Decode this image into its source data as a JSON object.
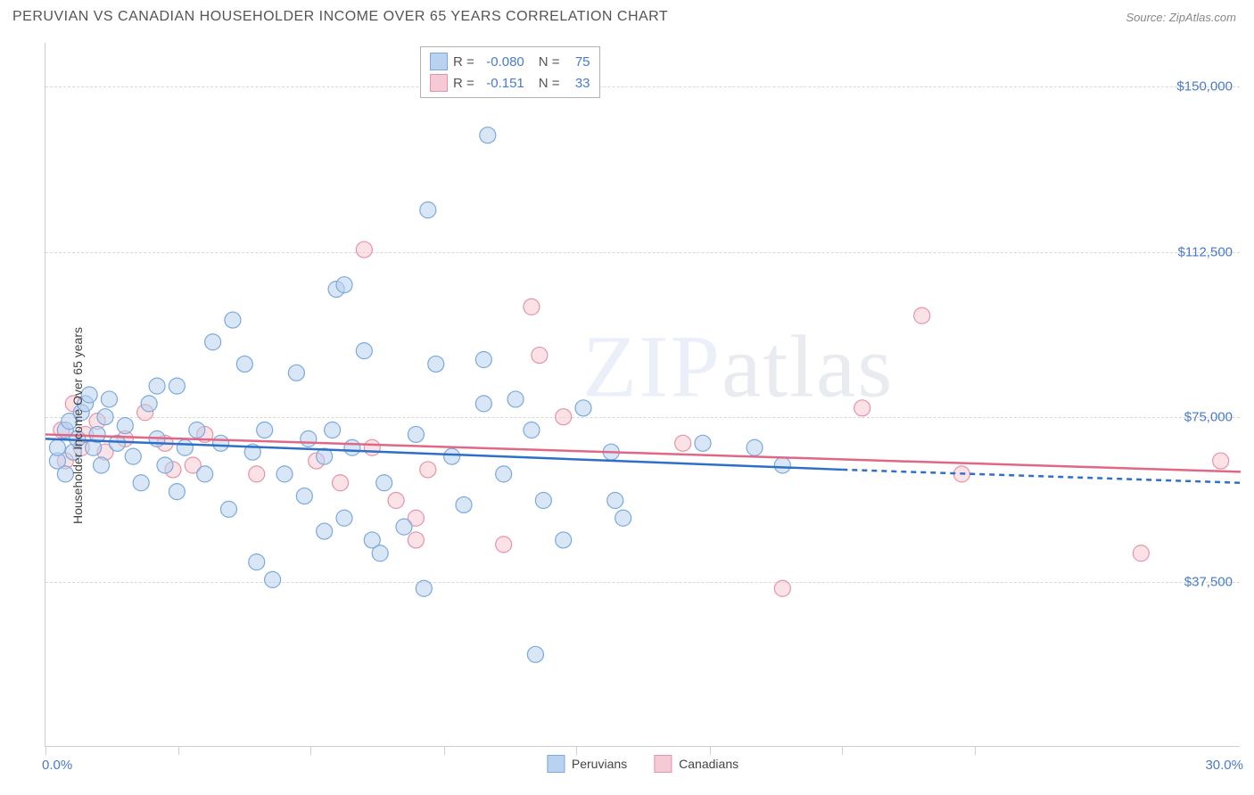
{
  "header": {
    "title": "PERUVIAN VS CANADIAN HOUSEHOLDER INCOME OVER 65 YEARS CORRELATION CHART",
    "source_prefix": "Source: ",
    "source": "ZipAtlas.com"
  },
  "chart": {
    "type": "scatter",
    "xlim": [
      0,
      30
    ],
    "ylim": [
      0,
      160000
    ],
    "x_axis_label_left": "0.0%",
    "x_axis_label_right": "30.0%",
    "y_axis_title": "Householder Income Over 65 years",
    "y_ticks": [
      {
        "value": 37500,
        "label": "$37,500"
      },
      {
        "value": 75000,
        "label": "$75,000"
      },
      {
        "value": 112500,
        "label": "$112,500"
      },
      {
        "value": 150000,
        "label": "$150,000"
      }
    ],
    "x_ticks": [
      0,
      3.33,
      6.66,
      10,
      13.33,
      16.67,
      20,
      23.33
    ],
    "colors": {
      "series1_fill": "#b8d2ef",
      "series1_stroke": "#7ba9dd",
      "series1_line": "#2e6fc9",
      "series2_fill": "#f5cad4",
      "series2_stroke": "#e593a8",
      "series2_line": "#e06886",
      "grid": "#d8d8d8",
      "axis_text": "#4a7ac9",
      "watermark": "#cdd3e0"
    },
    "marker_radius": 9,
    "marker_opacity": 0.55,
    "line_width": 2.5,
    "stats": [
      {
        "swatch_fill": "#b8d2ef",
        "swatch_stroke": "#7ba9dd",
        "r": "-0.080",
        "n": "75"
      },
      {
        "swatch_fill": "#f5cad4",
        "swatch_stroke": "#e593a8",
        "r": "-0.151",
        "n": "33"
      }
    ],
    "legend": [
      {
        "label": "Peruvians",
        "fill": "#b8d2ef",
        "stroke": "#7ba9dd"
      },
      {
        "label": "Canadians",
        "fill": "#f5cad4",
        "stroke": "#e593a8"
      }
    ],
    "trend_lines": {
      "series1": {
        "x1": 0,
        "y1": 70000,
        "x2": 20,
        "y2": 63000,
        "dash_x2": 30,
        "dash_y2": 60000
      },
      "series2": {
        "x1": 0,
        "y1": 71000,
        "x2": 30,
        "y2": 62500
      }
    },
    "data_series1": [
      {
        "x": 0.3,
        "y": 65000
      },
      {
        "x": 0.3,
        "y": 68000
      },
      {
        "x": 0.5,
        "y": 72000
      },
      {
        "x": 0.5,
        "y": 62000
      },
      {
        "x": 0.6,
        "y": 74000
      },
      {
        "x": 0.7,
        "y": 67000
      },
      {
        "x": 0.8,
        "y": 70000
      },
      {
        "x": 0.9,
        "y": 76000
      },
      {
        "x": 1.0,
        "y": 78000
      },
      {
        "x": 1.1,
        "y": 80000
      },
      {
        "x": 1.2,
        "y": 68000
      },
      {
        "x": 1.3,
        "y": 71000
      },
      {
        "x": 1.4,
        "y": 64000
      },
      {
        "x": 1.5,
        "y": 75000
      },
      {
        "x": 1.6,
        "y": 79000
      },
      {
        "x": 1.8,
        "y": 69000
      },
      {
        "x": 2.0,
        "y": 73000
      },
      {
        "x": 2.2,
        "y": 66000
      },
      {
        "x": 2.4,
        "y": 60000
      },
      {
        "x": 2.6,
        "y": 78000
      },
      {
        "x": 2.8,
        "y": 70000
      },
      {
        "x": 2.8,
        "y": 82000
      },
      {
        "x": 3.0,
        "y": 64000
      },
      {
        "x": 3.3,
        "y": 58000
      },
      {
        "x": 3.3,
        "y": 82000
      },
      {
        "x": 3.5,
        "y": 68000
      },
      {
        "x": 3.8,
        "y": 72000
      },
      {
        "x": 4.0,
        "y": 62000
      },
      {
        "x": 4.2,
        "y": 92000
      },
      {
        "x": 4.4,
        "y": 69000
      },
      {
        "x": 4.6,
        "y": 54000
      },
      {
        "x": 4.7,
        "y": 97000
      },
      {
        "x": 5.0,
        "y": 87000
      },
      {
        "x": 5.2,
        "y": 67000
      },
      {
        "x": 5.3,
        "y": 42000
      },
      {
        "x": 5.5,
        "y": 72000
      },
      {
        "x": 5.7,
        "y": 38000
      },
      {
        "x": 6.0,
        "y": 62000
      },
      {
        "x": 6.3,
        "y": 85000
      },
      {
        "x": 6.5,
        "y": 57000
      },
      {
        "x": 6.6,
        "y": 70000
      },
      {
        "x": 7.0,
        "y": 66000
      },
      {
        "x": 7.0,
        "y": 49000
      },
      {
        "x": 7.2,
        "y": 72000
      },
      {
        "x": 7.3,
        "y": 104000
      },
      {
        "x": 7.5,
        "y": 52000
      },
      {
        "x": 7.5,
        "y": 105000
      },
      {
        "x": 7.7,
        "y": 68000
      },
      {
        "x": 8.0,
        "y": 90000
      },
      {
        "x": 8.2,
        "y": 47000
      },
      {
        "x": 8.4,
        "y": 44000
      },
      {
        "x": 8.5,
        "y": 60000
      },
      {
        "x": 9.0,
        "y": 50000
      },
      {
        "x": 9.3,
        "y": 71000
      },
      {
        "x": 9.5,
        "y": 36000
      },
      {
        "x": 9.6,
        "y": 122000
      },
      {
        "x": 9.8,
        "y": 87000
      },
      {
        "x": 10.2,
        "y": 66000
      },
      {
        "x": 10.5,
        "y": 55000
      },
      {
        "x": 11.0,
        "y": 88000
      },
      {
        "x": 11.0,
        "y": 78000
      },
      {
        "x": 11.1,
        "y": 139000
      },
      {
        "x": 11.5,
        "y": 62000
      },
      {
        "x": 11.8,
        "y": 79000
      },
      {
        "x": 12.2,
        "y": 72000
      },
      {
        "x": 12.3,
        "y": 21000
      },
      {
        "x": 12.5,
        "y": 56000
      },
      {
        "x": 13.0,
        "y": 47000
      },
      {
        "x": 13.5,
        "y": 77000
      },
      {
        "x": 14.2,
        "y": 67000
      },
      {
        "x": 14.3,
        "y": 56000
      },
      {
        "x": 14.5,
        "y": 52000
      },
      {
        "x": 16.5,
        "y": 69000
      },
      {
        "x": 17.8,
        "y": 68000
      },
      {
        "x": 18.5,
        "y": 64000
      }
    ],
    "data_series2": [
      {
        "x": 0.4,
        "y": 72000
      },
      {
        "x": 0.5,
        "y": 65000
      },
      {
        "x": 0.7,
        "y": 78000
      },
      {
        "x": 0.9,
        "y": 68000
      },
      {
        "x": 1.0,
        "y": 71000
      },
      {
        "x": 1.3,
        "y": 74000
      },
      {
        "x": 1.5,
        "y": 67000
      },
      {
        "x": 2.0,
        "y": 70000
      },
      {
        "x": 2.5,
        "y": 76000
      },
      {
        "x": 3.0,
        "y": 69000
      },
      {
        "x": 3.2,
        "y": 63000
      },
      {
        "x": 3.7,
        "y": 64000
      },
      {
        "x": 4.0,
        "y": 71000
      },
      {
        "x": 5.3,
        "y": 62000
      },
      {
        "x": 6.8,
        "y": 65000
      },
      {
        "x": 7.4,
        "y": 60000
      },
      {
        "x": 8.0,
        "y": 113000
      },
      {
        "x": 8.2,
        "y": 68000
      },
      {
        "x": 8.8,
        "y": 56000
      },
      {
        "x": 9.3,
        "y": 47000
      },
      {
        "x": 9.3,
        "y": 52000
      },
      {
        "x": 9.6,
        "y": 63000
      },
      {
        "x": 11.5,
        "y": 46000
      },
      {
        "x": 12.2,
        "y": 100000
      },
      {
        "x": 12.4,
        "y": 89000
      },
      {
        "x": 13.0,
        "y": 75000
      },
      {
        "x": 16.0,
        "y": 69000
      },
      {
        "x": 18.5,
        "y": 36000
      },
      {
        "x": 20.5,
        "y": 77000
      },
      {
        "x": 22.0,
        "y": 98000
      },
      {
        "x": 23.0,
        "y": 62000
      },
      {
        "x": 27.5,
        "y": 44000
      },
      {
        "x": 29.5,
        "y": 65000
      }
    ]
  },
  "watermark": {
    "part1": "ZIP",
    "part2": "atlas"
  }
}
